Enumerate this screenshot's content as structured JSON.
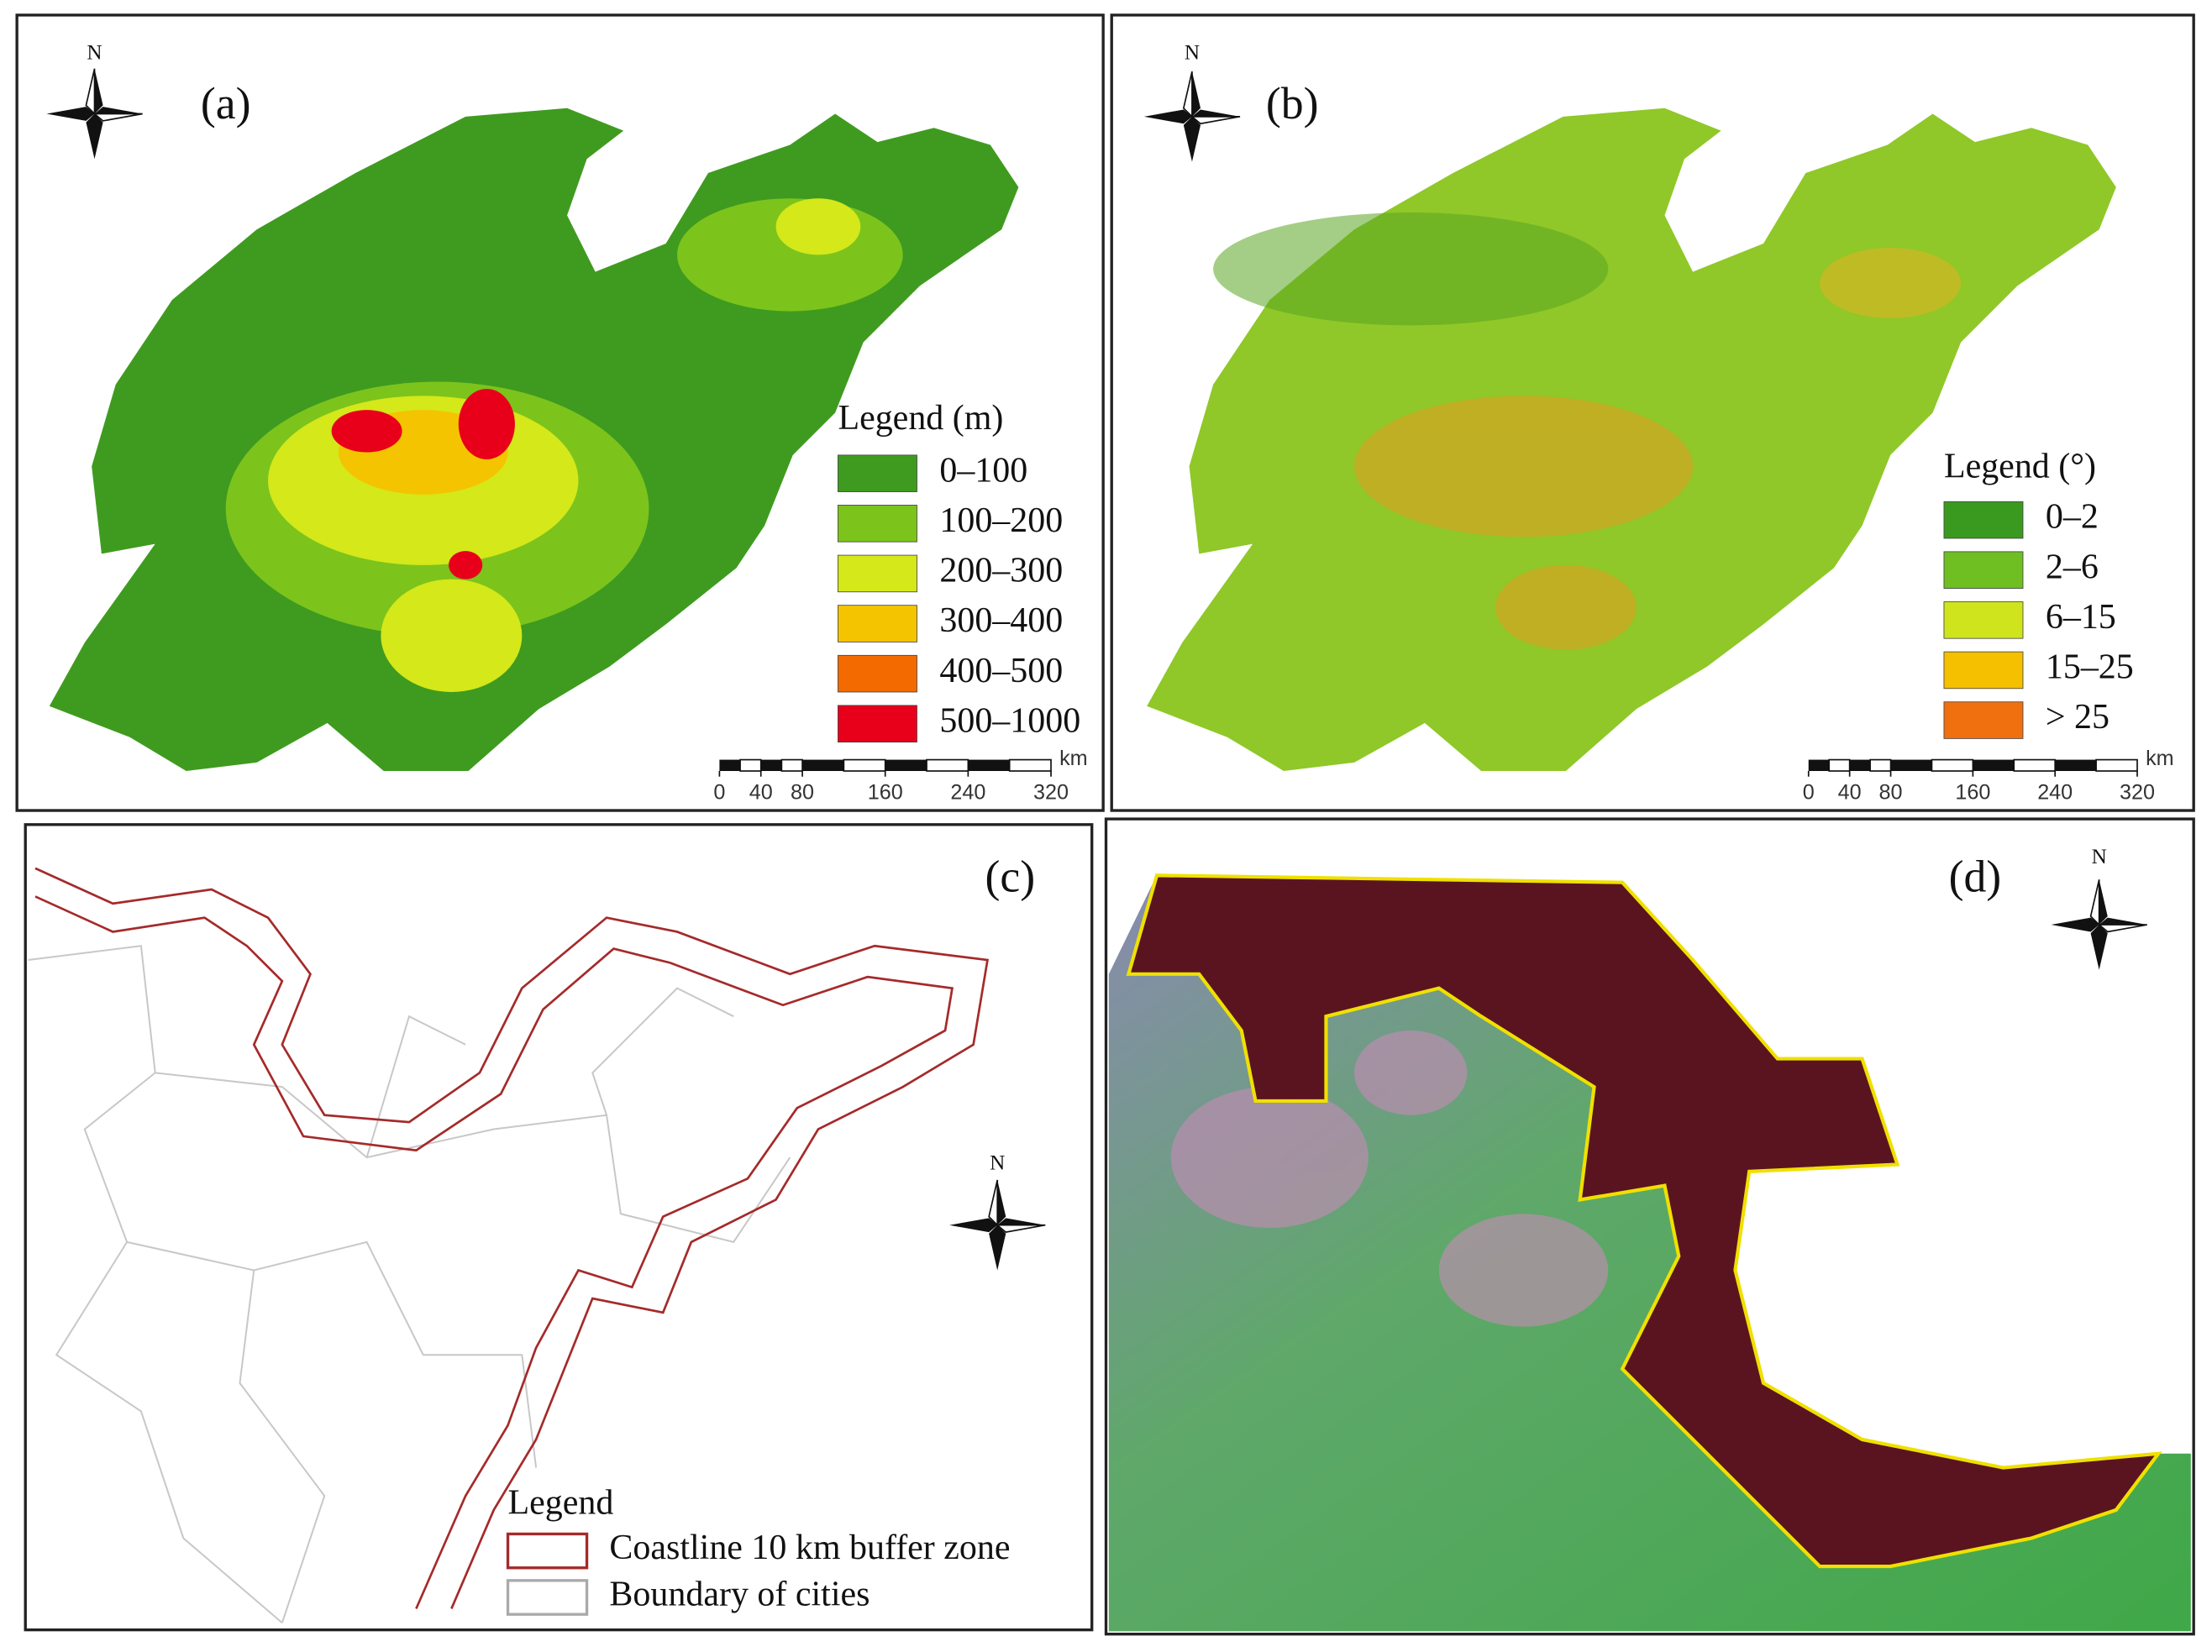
{
  "panels": [
    {
      "label": "(a)",
      "north": "N",
      "legend": {
        "title": "Legend (m)",
        "items": [
          {
            "label": "0–100",
            "color": "#3f9b1f"
          },
          {
            "label": "100–200",
            "color": "#7cc41c"
          },
          {
            "label": "200–300",
            "color": "#d4e81a"
          },
          {
            "label": "300–400",
            "color": "#f5c400"
          },
          {
            "label": "400–500",
            "color": "#f26a00"
          },
          {
            "label": "500–1000",
            "color": "#e8001a"
          }
        ]
      },
      "scale_bar": {
        "ticks": [
          0,
          40,
          80,
          160,
          240,
          320
        ],
        "unit": "km"
      }
    },
    {
      "label": "(b)",
      "north": "N",
      "legend": {
        "title": "Legend (°)",
        "items": [
          {
            "label": "0–2",
            "color": "#3a9a1f"
          },
          {
            "label": "2–6",
            "color": "#6fbf23"
          },
          {
            "label": "6–15",
            "color": "#cfe41c"
          },
          {
            "label": "15–25",
            "color": "#f5c000"
          },
          {
            "label": "> 25",
            "color": "#f07010"
          }
        ]
      },
      "scale_bar": {
        "ticks": [
          0,
          40,
          80,
          160,
          240,
          320
        ],
        "unit": "km"
      }
    },
    {
      "label": "(c)",
      "north": "N",
      "legend": {
        "title": "Legend",
        "items": [
          {
            "label": "Coastline 10 km buffer zone",
            "color": "#a52a2a"
          },
          {
            "label": "Boundary of cities",
            "color": "#aaaaaa"
          }
        ]
      }
    },
    {
      "label": "(d)",
      "north": "N"
    }
  ]
}
